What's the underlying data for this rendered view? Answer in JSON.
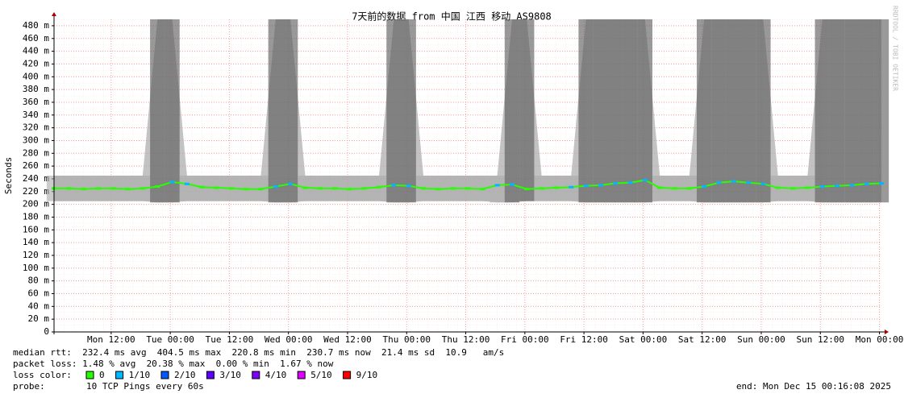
{
  "chart_data": {
    "type": "line",
    "title": "7天前的数据 from 中国 江西 移动 AS9808",
    "ylabel": "Seconds",
    "side_label": "RRDTOOL / TOBI OETIKER",
    "x": [
      0,
      3,
      6,
      9,
      12,
      15,
      18,
      21,
      24,
      27,
      30,
      33,
      36,
      39,
      42,
      45,
      48,
      51,
      54,
      57,
      60,
      63,
      66,
      69,
      72,
      75,
      78,
      81,
      84,
      87,
      90,
      93,
      96,
      99,
      102,
      105,
      108,
      111,
      114,
      117,
      120,
      123,
      126,
      129,
      132,
      135,
      138,
      141,
      144,
      147,
      150,
      153,
      156,
      159,
      162,
      165,
      168
    ],
    "values": [
      0.225,
      0.225,
      0.224,
      0.225,
      0.225,
      0.224,
      0.225,
      0.228,
      0.235,
      0.232,
      0.227,
      0.226,
      0.225,
      0.224,
      0.224,
      0.228,
      0.232,
      0.226,
      0.225,
      0.225,
      0.224,
      0.225,
      0.227,
      0.23,
      0.229,
      0.225,
      0.224,
      0.225,
      0.225,
      0.224,
      0.23,
      0.231,
      0.224,
      0.225,
      0.226,
      0.227,
      0.229,
      0.23,
      0.233,
      0.234,
      0.238,
      0.226,
      0.225,
      0.225,
      0.228,
      0.234,
      0.236,
      0.234,
      0.232,
      0.226,
      0.225,
      0.226,
      0.228,
      0.229,
      0.23,
      0.232,
      0.233
    ],
    "loss": [
      0,
      0,
      0,
      0,
      0,
      0,
      0,
      0,
      1,
      1,
      0,
      0,
      0,
      0,
      0,
      1,
      1,
      0,
      0,
      0,
      0,
      0,
      0,
      1,
      1,
      0,
      0,
      0,
      0,
      0,
      1,
      1,
      0,
      0,
      0,
      1,
      1,
      1,
      1,
      1,
      1,
      0,
      0,
      0,
      1,
      1,
      1,
      1,
      1,
      0,
      0,
      0,
      1,
      1,
      1,
      1,
      1
    ],
    "low": [
      0.205,
      0.205,
      0.205,
      0.205,
      0.205,
      0.205,
      0.205,
      0.203,
      0.203,
      0.205,
      0.205,
      0.205,
      0.205,
      0.205,
      0.205,
      0.203,
      0.203,
      0.205,
      0.205,
      0.205,
      0.205,
      0.205,
      0.205,
      0.203,
      0.203,
      0.205,
      0.205,
      0.205,
      0.205,
      0.205,
      0.203,
      0.203,
      0.205,
      0.205,
      0.205,
      0.205,
      0.203,
      0.203,
      0.203,
      0.203,
      0.203,
      0.205,
      0.205,
      0.205,
      0.203,
      0.203,
      0.203,
      0.203,
      0.203,
      0.205,
      0.205,
      0.205,
      0.203,
      0.203,
      0.203,
      0.203,
      0.203
    ],
    "high": [
      0.245,
      0.245,
      0.245,
      0.245,
      0.245,
      0.245,
      0.245,
      0.49,
      0.49,
      0.245,
      0.245,
      0.245,
      0.245,
      0.245,
      0.245,
      0.49,
      0.49,
      0.245,
      0.245,
      0.245,
      0.245,
      0.245,
      0.245,
      0.49,
      0.49,
      0.245,
      0.245,
      0.245,
      0.245,
      0.245,
      0.245,
      0.49,
      0.49,
      0.245,
      0.245,
      0.245,
      0.49,
      0.49,
      0.49,
      0.49,
      0.49,
      0.245,
      0.245,
      0.245,
      0.49,
      0.49,
      0.49,
      0.49,
      0.49,
      0.245,
      0.245,
      0.245,
      0.49,
      0.49,
      0.49,
      0.49,
      0.49
    ],
    "xlim": [
      0,
      168
    ],
    "xticks": [
      {
        "value": 11.6,
        "label": "Mon 12:00"
      },
      {
        "value": 23.6,
        "label": "Tue 00:00"
      },
      {
        "value": 35.6,
        "label": "Tue 12:00"
      },
      {
        "value": 47.6,
        "label": "Wed 00:00"
      },
      {
        "value": 59.6,
        "label": "Wed 12:00"
      },
      {
        "value": 71.6,
        "label": "Thu 00:00"
      },
      {
        "value": 83.6,
        "label": "Thu 12:00"
      },
      {
        "value": 95.6,
        "label": "Fri 00:00"
      },
      {
        "value": 107.6,
        "label": "Fri 12:00"
      },
      {
        "value": 119.6,
        "label": "Sat 00:00"
      },
      {
        "value": 131.6,
        "label": "Sat 12:00"
      },
      {
        "value": 143.6,
        "label": "Sun 00:00"
      },
      {
        "value": 155.6,
        "label": "Sun 12:00"
      },
      {
        "value": 167.6,
        "label": "Mon 00:00"
      }
    ],
    "ylim": [
      0,
      0.49
    ],
    "yticks": [
      0,
      {
        "value": 0.02,
        "label": "20 m"
      },
      {
        "value": 0.04,
        "label": "40 m"
      },
      {
        "value": 0.06,
        "label": "60 m"
      },
      {
        "value": 0.08,
        "label": "80 m"
      },
      {
        "value": 0.1,
        "label": "100 m"
      },
      {
        "value": 0.12,
        "label": "120 m"
      },
      {
        "value": 0.14,
        "label": "140 m"
      },
      {
        "value": 0.16,
        "label": "160 m"
      },
      {
        "value": 0.18,
        "label": "180 m"
      },
      {
        "value": 0.2,
        "label": "200 m"
      },
      {
        "value": 0.22,
        "label": "220 m"
      },
      {
        "value": 0.24,
        "label": "240 m"
      },
      {
        "value": 0.26,
        "label": "260 m"
      },
      {
        "value": 0.28,
        "label": "280 m"
      },
      {
        "value": 0.3,
        "label": "300 m"
      },
      {
        "value": 0.32,
        "label": "320 m"
      },
      {
        "value": 0.34,
        "label": "340 m"
      },
      {
        "value": 0.36,
        "label": "360 m"
      },
      {
        "value": 0.38,
        "label": "380 m"
      },
      {
        "value": 0.4,
        "label": "400 m"
      },
      {
        "value": 0.42,
        "label": "420 m"
      },
      {
        "value": 0.44,
        "label": "440 m"
      },
      {
        "value": 0.46,
        "label": "460 m"
      },
      {
        "value": 0.48,
        "label": "480 m"
      }
    ],
    "grid": true,
    "smoke_color": "#aaaaaa",
    "burst_color": "#555555",
    "stats": [
      "median rtt:  232.4 ms avg  404.5 ms max  220.8 ms min  230.7 ms now  21.4 ms sd  10.9   am/s",
      "packet loss: 1.48 % avg  20.38 % max  0.00 % min  1.67 % now"
    ],
    "legend_title": "loss color:",
    "legend": [
      {
        "label": "0",
        "color": "#26ff00"
      },
      {
        "label": "1/10",
        "color": "#00b8ff"
      },
      {
        "label": "2/10",
        "color": "#0059ff"
      },
      {
        "label": "3/10",
        "color": "#5e00ff"
      },
      {
        "label": "4/10",
        "color": "#7e00ff"
      },
      {
        "label": "5/10",
        "color": "#dd00ff"
      },
      {
        "label": "9/10",
        "color": "#ff0000"
      }
    ],
    "probe_label": "probe:",
    "probe": "10 TCP Pings every 60s",
    "end": "end: Mon Dec 15 00:16:08 2025"
  }
}
